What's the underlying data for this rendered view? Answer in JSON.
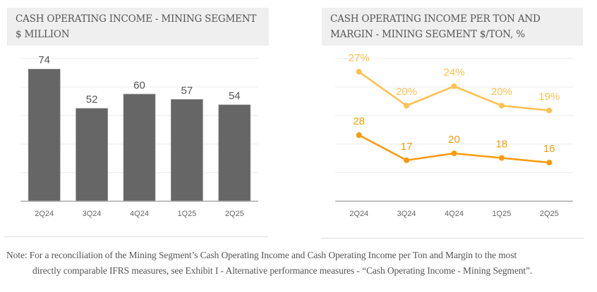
{
  "left_panel": {
    "title_line1": "CASH OPERATING INCOME - MINING SEGMENT",
    "title_line2": "$ MILLION"
  },
  "right_panel": {
    "title_line1": "CASH OPERATING INCOME PER TON AND",
    "title_line2": "MARGIN - MINING SEGMENT $/TON, %"
  },
  "note": {
    "line1": "Note: For a reconciliation of the Mining Segment’s Cash Operating Income and Cash Operating Income per Ton and Margin to the most",
    "line2": "directly comparable IFRS measures, see Exhibit I - Alternative performance measures - “Cash Operating Income - Mining Segment”."
  },
  "colors": {
    "bar": "#666666",
    "margin_line": "#fcc150",
    "per_ton_line": "#f79b0d",
    "gridline": "#ebebeb",
    "axis": "#aaaaaa",
    "header_bg": "#efefef"
  },
  "chart_data": [
    {
      "type": "bar",
      "title": "CASH OPERATING INCOME - MINING SEGMENT $ MILLION",
      "categories": [
        "2Q24",
        "3Q24",
        "4Q24",
        "1Q25",
        "2Q25"
      ],
      "values": [
        74,
        52,
        60,
        57,
        54
      ],
      "data_labels": [
        "74",
        "52",
        "60",
        "57",
        "54"
      ],
      "xlabel": "",
      "ylabel": "",
      "ylim": [
        0,
        80
      ],
      "grid": true,
      "y_grid_step": 16,
      "y_tick_labels_visible": false
    },
    {
      "type": "line",
      "title": "CASH OPERATING INCOME PER TON AND MARGIN - MINING SEGMENT $/TON, %",
      "categories": [
        "2Q24",
        "3Q24",
        "4Q24",
        "1Q25",
        "2Q25"
      ],
      "series": [
        {
          "name": "Margin (%)",
          "values": [
            27,
            20,
            24,
            20,
            19
          ],
          "data_labels": [
            "27%",
            "20%",
            "24%",
            "20%",
            "19%"
          ],
          "color_key": "margin_line"
        },
        {
          "name": "Cash Operating Income per Ton ($/ton)",
          "values": [
            28,
            17,
            20,
            18,
            16
          ],
          "data_labels": [
            "28",
            "17",
            "20",
            "18",
            "16"
          ],
          "color_key": "per_ton_line"
        }
      ],
      "xlabel": "",
      "ylabel": "",
      "grid": true,
      "y_tick_labels_visible": false,
      "legend": "none"
    }
  ]
}
